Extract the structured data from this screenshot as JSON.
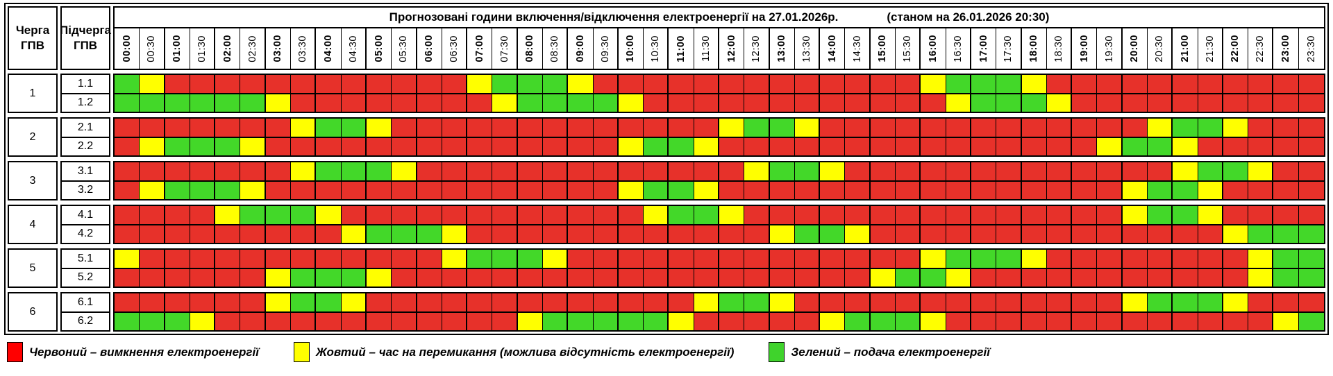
{
  "title": {
    "main": "Прогнозовані години включення/відключення електроенергії на 27.01.2026р.",
    "as_of": "(станом на 26.01.2026 20:30)"
  },
  "columns": {
    "queue": "Черга\nГПВ",
    "subqueue": "Підчерга\nГПВ"
  },
  "colors": {
    "R": "#e7312a",
    "Y": "#ffff00",
    "G": "#43d829"
  },
  "legend": [
    {
      "key": "R",
      "color": "#ff0000",
      "label": "Червоний – вимкнення електроенергії"
    },
    {
      "key": "Y",
      "color": "#ffff00",
      "label": "Жовтий – час на перемикання (можлива відсутність електроенергії)"
    },
    {
      "key": "G",
      "color": "#3fd32c",
      "label": "Зелений – подача електроенергії"
    }
  ],
  "chart_data": {
    "type": "heatmap",
    "title": "Прогнозовані години включення/відключення електроенергії на 27.01.2026р. (станом на 26.01.2026 20:30)",
    "x": [
      "00:00",
      "00:30",
      "01:00",
      "01:30",
      "02:00",
      "02:30",
      "03:00",
      "03:30",
      "04:00",
      "04:30",
      "05:00",
      "05:30",
      "06:00",
      "06:30",
      "07:00",
      "07:30",
      "08:00",
      "08:30",
      "09:00",
      "09:30",
      "10:00",
      "10:30",
      "11:00",
      "11:30",
      "12:00",
      "12:30",
      "13:00",
      "13:30",
      "14:00",
      "14:30",
      "15:00",
      "15:30",
      "16:00",
      "16:30",
      "17:00",
      "17:30",
      "18:00",
      "18:30",
      "19:00",
      "19:30",
      "20:00",
      "20:30",
      "21:00",
      "21:30",
      "22:00",
      "22:30",
      "23:00",
      "23:30"
    ],
    "value_meaning": {
      "R": "вимкнення електроенергії",
      "Y": "час на перемикання (можлива відсутність електроенергії)",
      "G": "подача електроенергії"
    },
    "rows": [
      {
        "queue": "1",
        "subqueue": "1.1",
        "cells": "GYRRRRRRRRRRRRYGGGYRRRRRRRRRRRRRYGGGYRRRRRRRRRRR"
      },
      {
        "queue": "1",
        "subqueue": "1.2",
        "cells": "GGGGGGYRRRRRRRRYGGGGYRRRRRRRRRRRRYGGGYRRRRRRRRRR"
      },
      {
        "queue": "2",
        "subqueue": "2.1",
        "cells": "RRRRRRRYGGYRRRRRRRRRRRRRYGGYRRRRRRRRRRRRRYGGYRRR"
      },
      {
        "queue": "2",
        "subqueue": "2.2",
        "cells": "RYGGGYRRRRRRRRRRRRRRYGGYRRRRRRRRRRRRRRRYGGYRRRRR"
      },
      {
        "queue": "3",
        "subqueue": "3.1",
        "cells": "RRRRRRRYGGGYRRRRRRRRRRRRRYGGYRRRRRRRRRRRRRYGGYRR"
      },
      {
        "queue": "3",
        "subqueue": "3.2",
        "cells": "RYGGGYRRRRRRRRRRRRRRYGGYRRRRRRRRRRRRRRRRYGGYRRRR"
      },
      {
        "queue": "4",
        "subqueue": "4.1",
        "cells": "RRRRYGGGYRRRRRRRRRRRRYGGYRRRRRRRRRRRRRRRYGGYRRRR"
      },
      {
        "queue": "4",
        "subqueue": "4.2",
        "cells": "RRRRRRRRRYGGGYRRRRRRRRRRRRYGGYRRRRRRRRRRRRRRYGGG"
      },
      {
        "queue": "5",
        "subqueue": "5.1",
        "cells": "YRRRRRRRRRRRRYGGGYRRRRRRRRRRRRRRYGGGYRRRRRRRRYGG"
      },
      {
        "queue": "5",
        "subqueue": "5.2",
        "cells": "RRRRRRYGGGYRRRRRRRRRRRRRRRRRRRYGGYRRRRRRRRRRRYGG"
      },
      {
        "queue": "6",
        "subqueue": "6.1",
        "cells": "RRRRRRYGGYRRRRRRRRRRRRRYGGYRRRRRRRRRRRRRYGGGYRRR"
      },
      {
        "queue": "6",
        "subqueue": "6.2",
        "cells": "GGGYRRRRRRRRRRRRYGGGGGYRRRRRYGGGYRRRRRRRRRRRRRYG"
      }
    ]
  }
}
